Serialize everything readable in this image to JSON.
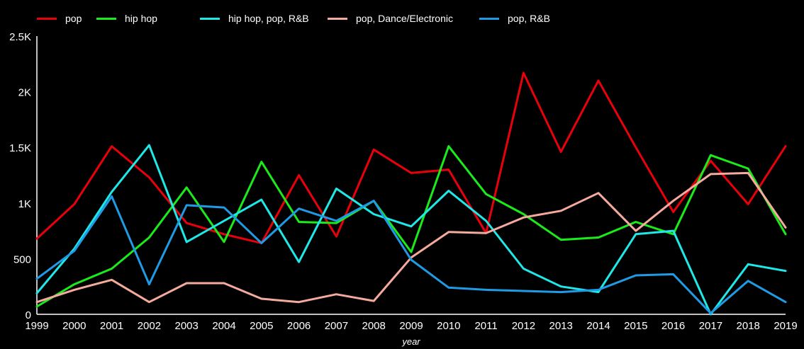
{
  "chart_data": {
    "type": "line",
    "title": "",
    "xlabel": "year",
    "ylabel": "",
    "x": [
      1999,
      2000,
      2001,
      2002,
      2003,
      2004,
      2005,
      2006,
      2007,
      2008,
      2009,
      2010,
      2011,
      2012,
      2013,
      2014,
      2015,
      2016,
      2017,
      2018,
      2019
    ],
    "x_tick_labels": [
      "1999",
      "2000",
      "2001",
      "2002",
      "2003",
      "2004",
      "2005",
      "2006",
      "2007",
      "2008",
      "2009",
      "2010",
      "2011",
      "2012",
      "2013",
      "2014",
      "2015",
      "2016",
      "2017",
      "2018",
      "2019"
    ],
    "ylim": [
      0,
      2500
    ],
    "y_ticks": [
      0,
      500,
      1000,
      1500,
      2000,
      2500
    ],
    "y_tick_labels": [
      "0",
      "500",
      "1K",
      "1.5K",
      "2K",
      "2.5K"
    ],
    "grid": false,
    "legend_position": "top",
    "series": [
      {
        "name": "pop",
        "color": "#e8000b",
        "values": [
          680,
          990,
          1510,
          1230,
          820,
          720,
          640,
          1250,
          700,
          1480,
          1270,
          1300,
          730,
          2170,
          1460,
          2100,
          1500,
          920,
          1380,
          990,
          1510
        ]
      },
      {
        "name": "hip hop",
        "color": "#1aeb1a",
        "values": [
          70,
          270,
          410,
          690,
          1140,
          650,
          1370,
          830,
          820,
          1020,
          560,
          1510,
          1080,
          900,
          670,
          690,
          830,
          720,
          1430,
          1310,
          720
        ]
      },
      {
        "name": "hip hop, pop, R&B",
        "color": "#1ee8e8",
        "values": [
          190,
          590,
          1100,
          1520,
          650,
          840,
          1030,
          470,
          1130,
          900,
          790,
          1110,
          840,
          410,
          250,
          200,
          720,
          750,
          0,
          450,
          390
        ]
      },
      {
        "name": "pop, Dance/Electronic",
        "color": "#f4aa9c",
        "values": [
          110,
          220,
          310,
          110,
          280,
          280,
          140,
          110,
          180,
          120,
          510,
          740,
          730,
          870,
          930,
          1090,
          750,
          1020,
          1260,
          1270,
          780
        ]
      },
      {
        "name": "pop, R&B",
        "color": "#1f9be6",
        "values": [
          320,
          570,
          1060,
          270,
          980,
          960,
          640,
          950,
          840,
          1020,
          490,
          240,
          220,
          210,
          200,
          220,
          350,
          360,
          10,
          300,
          110
        ]
      }
    ]
  }
}
